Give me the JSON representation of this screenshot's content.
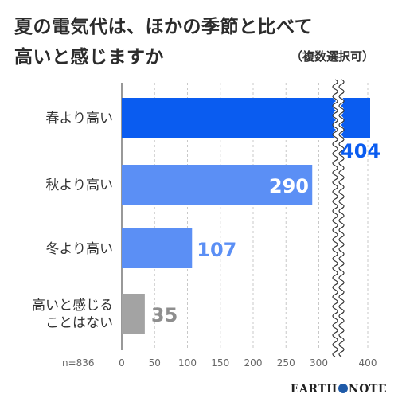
{
  "title_line1": "夏の電気代は、ほかの季節と比べて",
  "title_line2": "高いと感じますか",
  "note": "（複数選択可）",
  "sample": "n=836",
  "brand": {
    "part1": "EARTH",
    "part2": "NOTE"
  },
  "colors": {
    "primary": "#0a5cf0",
    "secondary": "#5b8ff5",
    "other": "#a3a3a3",
    "value_dark_text": "#6e6e6e"
  },
  "chart_data": {
    "type": "bar",
    "orientation": "horizontal",
    "categories": [
      "春より高い",
      "秋より高い",
      "冬より高い",
      "高いと感じる\nことはない"
    ],
    "values": [
      404,
      290,
      107,
      35
    ],
    "value_labels": [
      "404",
      "290",
      "107",
      "35"
    ],
    "x_ticks": [
      "0",
      "50",
      "100",
      "150",
      "200",
      "250",
      "300",
      "400"
    ],
    "xlim": [
      0,
      400
    ],
    "axis_break": "between 300 and 400",
    "grid": "vertical dashed",
    "title": "夏の電気代は、ほかの季節と比べて高いと感じますか"
  }
}
